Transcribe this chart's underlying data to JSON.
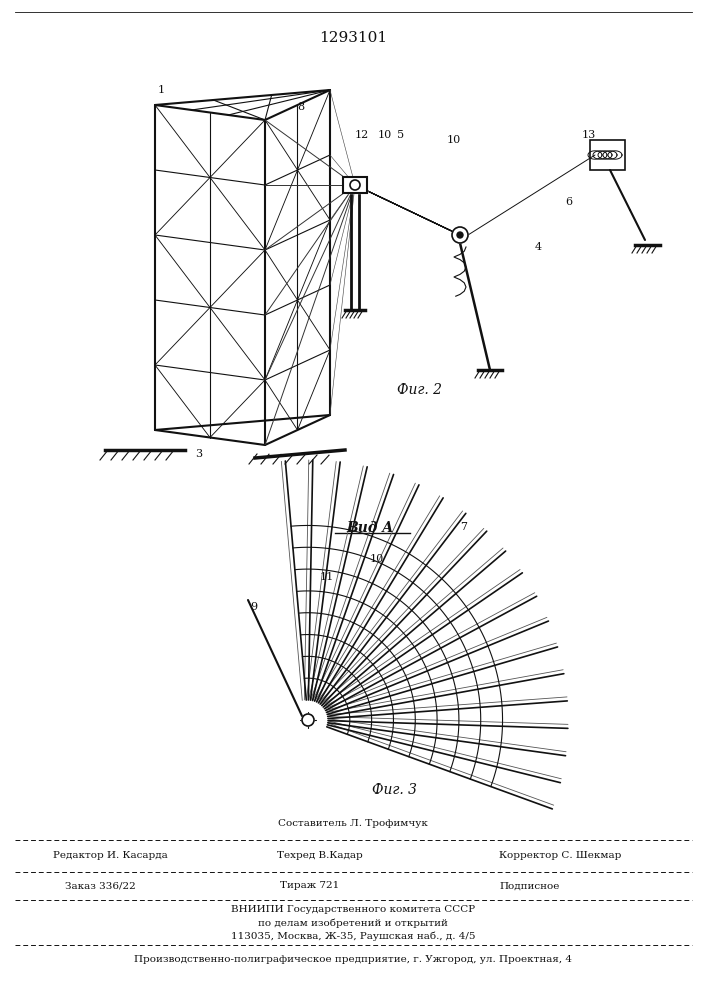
{
  "patent_number": "1293101",
  "bg_color": "#ffffff",
  "line_color": "#111111",
  "fig2_label": "Фиг. 2",
  "fig3_label": "Фиг. 3",
  "view_label": "Вид A",
  "footer_line1_center_top": "Составитель Л. Трофимчук",
  "footer_line1_left": "Редактор И. Касарда",
  "footer_line1_center": "Техред В.Кадар",
  "footer_line1_right": "Корректор С. Шекмар",
  "footer_line2_left": "Заказ 336/22",
  "footer_line2_center": "Тираж 721",
  "footer_line2_right": "Подписное",
  "footer_line3": "ВНИИПИ Государственного комитета СССР",
  "footer_line4": "по делам изобретений и открытий",
  "footer_line5": "113035, Москва, Ж-35, Раушская наб., д. 4/5",
  "footer_line6": "Производственно-полиграфическое предприятие, г. Ужгород, ул. Проектная, 4"
}
